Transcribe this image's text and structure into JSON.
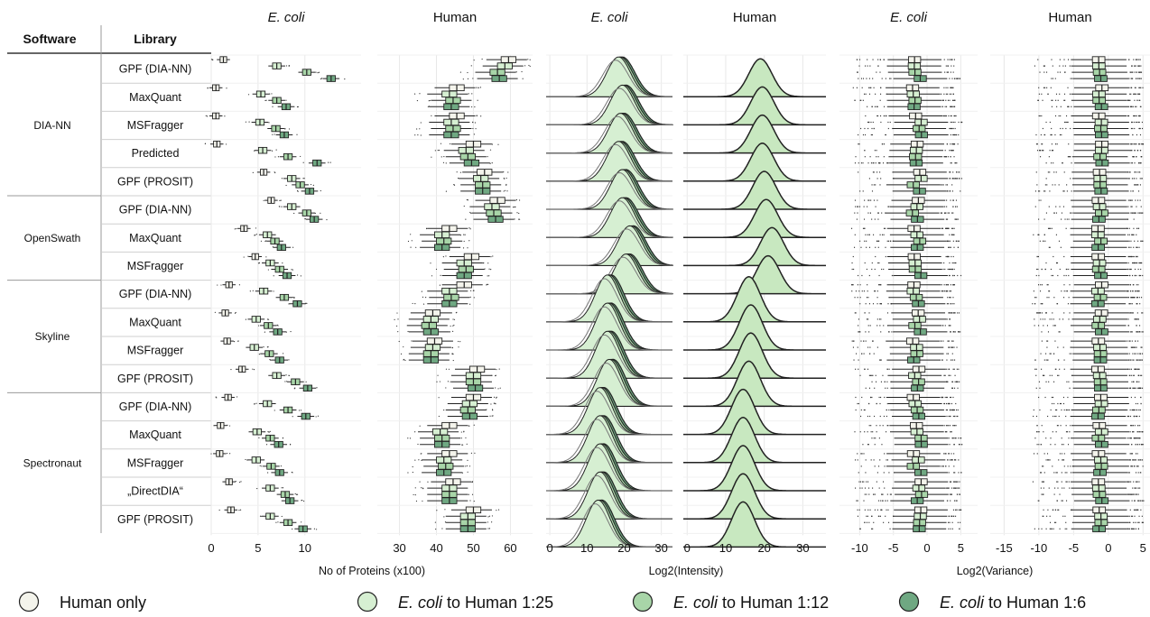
{
  "headers": {
    "software": "Software",
    "library": "Library"
  },
  "column_titles": [
    {
      "text": "E. coli",
      "italic": true
    },
    {
      "text": "Human",
      "italic": false
    },
    {
      "text": "E. coli",
      "italic": true
    },
    {
      "text": "Human",
      "italic": false
    },
    {
      "text": "E. coli",
      "italic": true
    },
    {
      "text": "Human",
      "italic": false
    }
  ],
  "software_groups": [
    {
      "name": "DIA-NN",
      "start": 0,
      "end": 4
    },
    {
      "name": "OpenSwath",
      "start": 5,
      "end": 7
    },
    {
      "name": "Skyline",
      "start": 8,
      "end": 11
    },
    {
      "name": "Spectronaut",
      "start": 12,
      "end": 16
    }
  ],
  "libraries": [
    "GPF (DIA-NN)",
    "MaxQuant",
    "MSFragger",
    "Predicted",
    "GPF (PROSIT)",
    "GPF (DIA-NN)",
    "MaxQuant",
    "MSFragger",
    "GPF (DIA-NN)",
    "MaxQuant",
    "MSFragger",
    "GPF (PROSIT)",
    "GPF (DIA-NN)",
    "MaxQuant",
    "MSFragger",
    "„DirectDIA“",
    "GPF (PROSIT)"
  ],
  "colors": {
    "human_only": "#f4f4ec",
    "ecoli_1_25": "#d6efd2",
    "ecoli_1_12": "#a8d5a8",
    "ecoli_1_6": "#6fa882",
    "density_fill": "#c8e8c0",
    "grid": "#e8e8e8",
    "outline": "#222222"
  },
  "legend": [
    {
      "italic": "",
      "text": "Human only",
      "color": "#f4f4ec"
    },
    {
      "italic": "E. coli",
      "text": " to Human 1:25",
      "color": "#d6efd2"
    },
    {
      "italic": "E. coli",
      "text": " to Human 1:12",
      "color": "#a8d5a8"
    },
    {
      "italic": "E. coli",
      "text": " to Human 1:6",
      "color": "#6fa882"
    }
  ],
  "chart_data": [
    {
      "type": "boxplot",
      "panel": "E. coli",
      "xlabel": "No of Proteins (x100)",
      "xlim": [
        0,
        16
      ],
      "xticks": [
        0,
        5,
        10
      ],
      "condition_names": [
        "Human only",
        "E. coli to Human 1:25",
        "E. coli to Human 1:12",
        "E. coli to Human 1:6"
      ],
      "medians": [
        [
          1.3,
          7.0,
          10.2,
          12.8
        ],
        [
          0.5,
          5.3,
          7.0,
          8.0
        ],
        [
          0.5,
          5.2,
          6.9,
          7.8
        ],
        [
          0.6,
          5.5,
          8.2,
          11.3
        ],
        [
          5.6,
          8.6,
          9.5,
          10.5
        ],
        [
          6.4,
          8.6,
          10.2,
          11.0
        ],
        [
          3.5,
          6.0,
          6.8,
          7.5
        ],
        [
          4.7,
          6.3,
          7.3,
          8.1
        ],
        [
          1.9,
          5.6,
          7.8,
          9.2
        ],
        [
          1.5,
          4.8,
          6.1,
          7.1
        ],
        [
          1.7,
          4.6,
          6.2,
          7.3
        ],
        [
          3.3,
          7.0,
          9.0,
          10.3
        ],
        [
          1.8,
          6.0,
          8.2,
          10.1
        ],
        [
          1.0,
          4.9,
          6.3,
          7.2
        ],
        [
          0.9,
          4.8,
          6.4,
          7.3
        ],
        [
          1.9,
          6.3,
          7.9,
          8.4
        ],
        [
          2.1,
          6.3,
          8.2,
          9.8
        ]
      ]
    },
    {
      "type": "boxplot",
      "panel": "Human",
      "xlim": [
        24,
        66
      ],
      "xticks": [
        30,
        40,
        50,
        60
      ],
      "medians": [
        [
          59.5,
          58.5,
          56.5,
          57.0
        ],
        [
          45.5,
          43.5,
          44.5,
          44.0
        ],
        [
          45.5,
          44.0,
          44.5,
          44.0
        ],
        [
          50.0,
          48.0,
          48.5,
          49.5
        ],
        [
          53.0,
          52.0,
          52.5,
          52.5
        ],
        [
          56.5,
          55.0,
          55.5,
          56.0
        ],
        [
          43.5,
          41.5,
          42.0,
          41.5
        ],
        [
          49.5,
          47.5,
          48.0,
          47.5
        ],
        [
          47.5,
          43.5,
          44.0,
          43.5
        ],
        [
          39.0,
          38.5,
          38.0,
          38.5
        ],
        [
          39.5,
          39.0,
          38.5,
          38.5
        ],
        [
          51.0,
          50.0,
          50.0,
          50.5
        ],
        [
          50.0,
          49.0,
          48.5,
          49.0
        ],
        [
          43.5,
          41.0,
          41.5,
          41.5
        ],
        [
          43.5,
          42.0,
          42.5,
          42.0
        ],
        [
          44.5,
          43.5,
          43.5,
          43.5
        ],
        [
          50.0,
          48.5,
          48.5,
          48.5
        ]
      ]
    },
    {
      "type": "density",
      "panel": "E. coli",
      "xlabel": "Log2(Intensity)",
      "xlim": [
        -1,
        33
      ],
      "xticks": [
        0,
        10,
        20,
        30
      ],
      "peaks": [
        18,
        19,
        18.5,
        18,
        19,
        19,
        21,
        20,
        15,
        15,
        15,
        15.5,
        13,
        13,
        13,
        13,
        12.5
      ]
    },
    {
      "type": "density",
      "panel": "Human",
      "xlim": [
        -1,
        36
      ],
      "xticks": [
        0,
        10,
        20,
        30
      ],
      "peaks": [
        19,
        19.5,
        19.5,
        19.5,
        20,
        20.5,
        22,
        21,
        16,
        16.5,
        16.5,
        16,
        14.5,
        14.5,
        14.5,
        14.5,
        14.5
      ]
    },
    {
      "type": "boxplot",
      "panel": "E. coli",
      "xlabel": "Log2(Variance)",
      "xlim": [
        -13,
        7.5
      ],
      "xticks": [
        -10,
        -5,
        0,
        5
      ],
      "median": -1.5
    },
    {
      "type": "boxplot",
      "panel": "Human",
      "xlim": [
        -17,
        6
      ],
      "xticks": [
        -15,
        -10,
        -5,
        0,
        5
      ],
      "median": -1.2
    }
  ]
}
